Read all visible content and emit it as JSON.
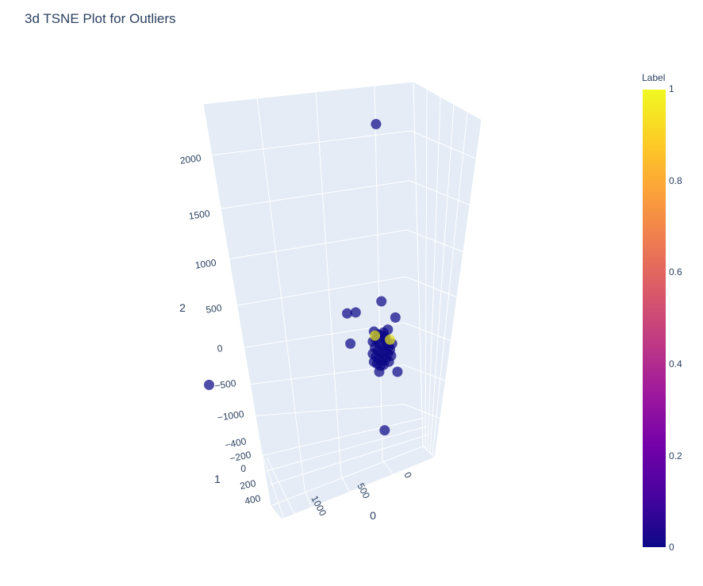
{
  "chart_data": {
    "type": "scatter3d",
    "title": "3d TSNE Plot for Outliers",
    "axes": {
      "x": {
        "title": "0",
        "ticks": [
          "1000",
          "500",
          "0"
        ],
        "range": [
          -200,
          1300
        ]
      },
      "y": {
        "title": "1",
        "ticks": [
          "−400",
          "−200",
          "0",
          "200",
          "400"
        ],
        "range": [
          -500,
          500
        ]
      },
      "z": {
        "title": "2",
        "ticks": [
          "−1000",
          "−500",
          "0",
          "500",
          "1000",
          "1500",
          "2000"
        ],
        "range": [
          -1200,
          2400
        ]
      }
    },
    "colorbar": {
      "title": "Label",
      "colorscale": "plasma",
      "range": [
        0,
        1
      ],
      "ticks": [
        "1",
        "0.8",
        "0.6",
        "0.4",
        "0.2",
        "0"
      ]
    },
    "points": [
      {
        "x": 230,
        "y": 0,
        "z": 2240,
        "label": 0
      },
      {
        "x": 900,
        "y": 0,
        "z": -350,
        "label": 0
      },
      {
        "x": 500,
        "y": 0,
        "z": 360,
        "label": 0
      },
      {
        "x": 420,
        "y": 0,
        "z": 370,
        "label": 0
      },
      {
        "x": 470,
        "y": 0,
        "z": 60,
        "label": 0
      },
      {
        "x": 180,
        "y": 0,
        "z": 480,
        "label": 0
      },
      {
        "x": 50,
        "y": 0,
        "z": 320,
        "label": 0
      },
      {
        "x": 150,
        "y": 0,
        "z": -800,
        "label": 0
      },
      {
        "x": 30,
        "y": 0,
        "z": -220,
        "label": 0
      },
      {
        "x": 250,
        "y": 0,
        "z": 180,
        "label": 0
      },
      {
        "x": 210,
        "y": 0,
        "z": 150,
        "label": 0
      },
      {
        "x": 180,
        "y": 0,
        "z": 140,
        "label": 0
      },
      {
        "x": 160,
        "y": 0,
        "z": 170,
        "label": 0
      },
      {
        "x": 140,
        "y": 0,
        "z": 110,
        "label": 0
      },
      {
        "x": 230,
        "y": 0,
        "z": 100,
        "label": 0
      },
      {
        "x": 260,
        "y": 0,
        "z": 80,
        "label": 0
      },
      {
        "x": 200,
        "y": 0,
        "z": 60,
        "label": 0
      },
      {
        "x": 170,
        "y": 0,
        "z": 40,
        "label": 0
      },
      {
        "x": 130,
        "y": 0,
        "z": 60,
        "label": 0
      },
      {
        "x": 110,
        "y": 0,
        "z": 30,
        "label": 0
      },
      {
        "x": 240,
        "y": 0,
        "z": 20,
        "label": 0
      },
      {
        "x": 210,
        "y": 0,
        "z": -10,
        "label": 0
      },
      {
        "x": 180,
        "y": 0,
        "z": -30,
        "label": 0
      },
      {
        "x": 150,
        "y": 0,
        "z": -20,
        "label": 0
      },
      {
        "x": 120,
        "y": 0,
        "z": -40,
        "label": 0
      },
      {
        "x": 100,
        "y": 0,
        "z": 0,
        "label": 0
      },
      {
        "x": 260,
        "y": 0,
        "z": -40,
        "label": 0
      },
      {
        "x": 230,
        "y": 0,
        "z": -70,
        "label": 0
      },
      {
        "x": 200,
        "y": 0,
        "z": -90,
        "label": 0
      },
      {
        "x": 170,
        "y": 0,
        "z": -110,
        "label": 0
      },
      {
        "x": 140,
        "y": 0,
        "z": -90,
        "label": 0
      },
      {
        "x": 110,
        "y": 0,
        "z": -120,
        "label": 0
      },
      {
        "x": 90,
        "y": 0,
        "z": -60,
        "label": 0
      },
      {
        "x": 80,
        "y": 0,
        "z": 60,
        "label": 0
      },
      {
        "x": 220,
        "y": 0,
        "z": -140,
        "label": 0
      },
      {
        "x": 190,
        "y": 0,
        "z": -160,
        "label": 0
      },
      {
        "x": 160,
        "y": 0,
        "z": -150,
        "label": 0
      },
      {
        "x": 250,
        "y": 0,
        "z": -120,
        "label": 0
      },
      {
        "x": 200,
        "y": 0,
        "z": -220,
        "label": 0
      },
      {
        "x": 150,
        "y": 0,
        "z": 130,
        "label": 0
      },
      {
        "x": 120,
        "y": 0,
        "z": 200,
        "label": 0
      },
      {
        "x": 240,
        "y": 0,
        "z": 140,
        "label": 1
      },
      {
        "x": 100,
        "y": 0,
        "z": 100,
        "label": 1
      }
    ]
  }
}
